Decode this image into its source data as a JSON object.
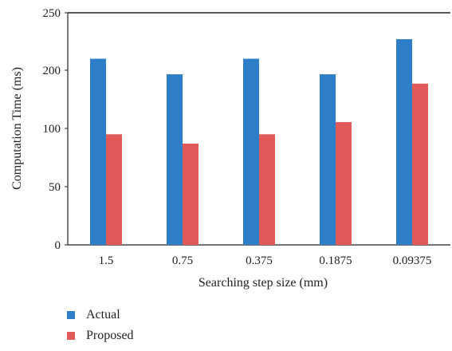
{
  "chart_data": {
    "type": "bar",
    "categories": [
      "1.5",
      "0.75",
      "0.375",
      "0.1875",
      "0.09375"
    ],
    "y_tick_labels": [
      "0",
      "50",
      "100",
      "200",
      "250"
    ],
    "series": [
      {
        "name": "Actual",
        "color": "#2e7fc8",
        "values": [
          210,
          193,
          210,
          193,
          227
        ]
      },
      {
        "name": "Proposed",
        "color": "#e05a5a",
        "values": [
          95,
          87,
          95,
          111,
          177
        ]
      }
    ],
    "xlabel": "Searching step size (mm)",
    "ylabel": "Computation Time (ms)",
    "grid": false,
    "legend_position": "bottom-left"
  }
}
